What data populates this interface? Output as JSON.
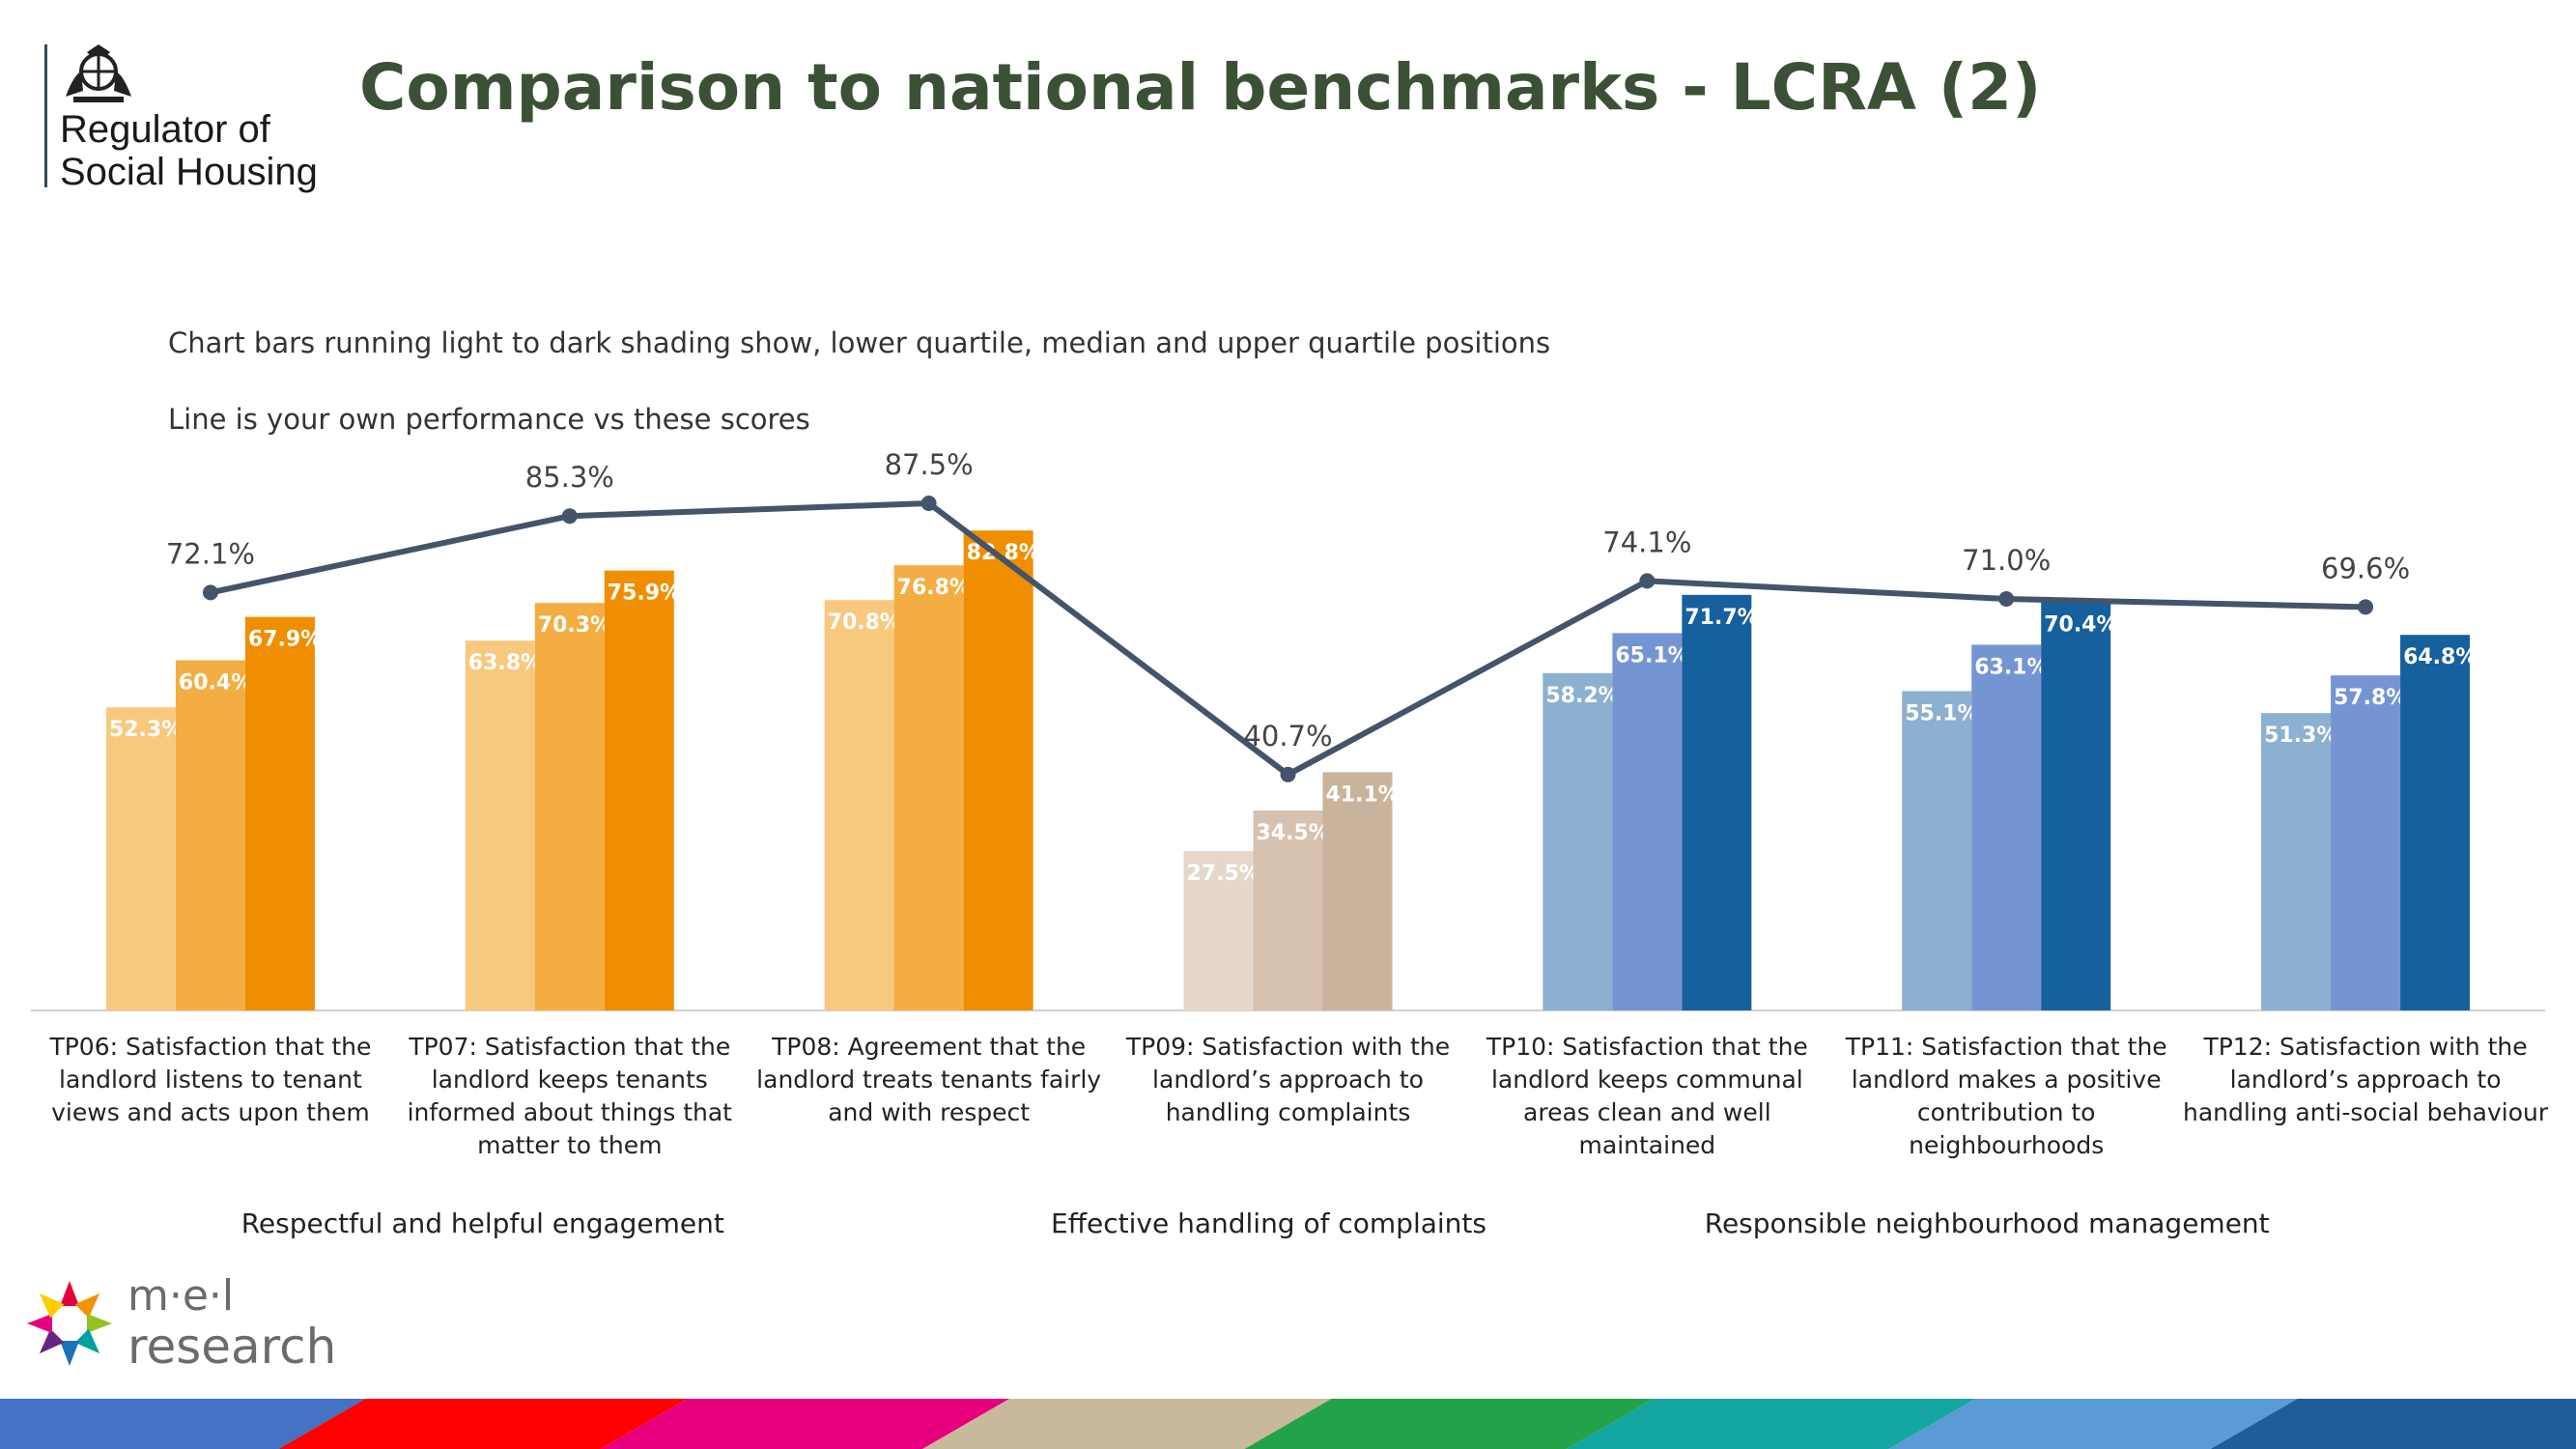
{
  "header": {
    "title": "Comparison to national benchmarks  - LCRA (2)",
    "org_line1": "Regulator of",
    "org_line2": "Social Housing"
  },
  "notes": {
    "line1": "Chart bars running light to dark shading show, lower quartile, median and upper quartile positions",
    "line2": "Line is your own performance vs these scores"
  },
  "chart_data": {
    "type": "bar",
    "title": "",
    "xlabel": "",
    "ylabel": "",
    "ylim": [
      0,
      100
    ],
    "grid": false,
    "legend": "none",
    "categories": [
      "TP06: Satisfaction that the landlord listens to tenant views and acts upon them",
      "TP07: Satisfaction that the landlord keeps tenants informed about things that matter to them",
      "TP08: Agreement that the landlord treats tenants fairly and with respect",
      "TP09: Satisfaction with the landlord’s approach to handling complaints",
      "TP10: Satisfaction that the landlord keeps communal areas clean and well maintained",
      "TP11: Satisfaction that the landlord makes a positive contribution to neighbourhoods",
      "TP12: Satisfaction with the landlord’s approach to handling anti-social behaviour"
    ],
    "category_lines": [
      [
        "TP06: Satisfaction that the",
        "landlord listens to tenant",
        "views and acts upon them"
      ],
      [
        "TP07: Satisfaction that the",
        "landlord keeps tenants",
        "informed about things that",
        "matter to them"
      ],
      [
        "TP08: Agreement that the",
        "landlord treats tenants fairly",
        "and with respect"
      ],
      [
        "TP09: Satisfaction with the",
        "landlord’s approach to",
        "handling complaints"
      ],
      [
        "TP10: Satisfaction that the",
        "landlord keeps communal",
        "areas clean and well",
        "maintained"
      ],
      [
        "TP11: Satisfaction that the",
        "landlord makes a positive",
        "contribution to",
        "neighbourhoods"
      ],
      [
        "TP12: Satisfaction with the",
        "landlord’s approach to",
        "handling anti-social behaviour"
      ]
    ],
    "series": [
      {
        "role": "lower quartile",
        "type": "bar",
        "values": [
          52.3,
          63.8,
          70.8,
          27.5,
          58.2,
          55.1,
          51.3
        ]
      },
      {
        "role": "median",
        "type": "bar",
        "values": [
          60.4,
          70.3,
          76.8,
          34.5,
          65.1,
          63.1,
          57.8
        ]
      },
      {
        "role": "upper quartile",
        "type": "bar",
        "values": [
          67.9,
          75.9,
          82.8,
          41.1,
          71.7,
          70.4,
          64.8
        ]
      },
      {
        "role": "own performance",
        "type": "line",
        "values": [
          72.1,
          85.3,
          87.5,
          40.7,
          74.1,
          71.0,
          69.6
        ]
      }
    ],
    "bar_labels": [
      [
        "52.3%",
        "60.4%",
        "67.9%"
      ],
      [
        "63.8%",
        "70.3%",
        "75.9%"
      ],
      [
        "70.8%",
        "76.8%",
        "82.8%"
      ],
      [
        "27.5%",
        "34.5%",
        "41.1%"
      ],
      [
        "58.2%",
        "65.1%",
        "71.7%"
      ],
      [
        "55.1%",
        "63.1%",
        "70.4%"
      ],
      [
        "51.3%",
        "57.8%",
        "64.8%"
      ]
    ],
    "line_labels": [
      "72.1%",
      "85.3%",
      "87.5%",
      "40.7%",
      "74.1%",
      "71.0%",
      "69.6%"
    ],
    "category_colors": [
      [
        "#f8c87f",
        "#f4ad42",
        "#ef8e00"
      ],
      [
        "#f8c87f",
        "#f4ad42",
        "#ef8e00"
      ],
      [
        "#f8c87f",
        "#f4ad42",
        "#ef8e00"
      ],
      [
        "#e5d8cb",
        "#d7c2af",
        "#c9b39c"
      ],
      [
        "#8cb0cf",
        "#7595d2",
        "#17609e"
      ],
      [
        "#8cb0cf",
        "#7595d2",
        "#17609e"
      ],
      [
        "#8cb0cf",
        "#7595d2",
        "#17609e"
      ]
    ],
    "line_color": "#44546a",
    "groups": [
      {
        "label": "Respectful and helpful engagement"
      },
      {
        "label": "Effective handling of complaints"
      },
      {
        "label": "Responsible neighbourhood management"
      }
    ]
  },
  "branding": {
    "partner_line1": "m·e·l",
    "partner_line2": "research"
  },
  "footer_colors": [
    "#4472c4",
    "#ff0000",
    "#e6007e",
    "#c9b99b",
    "#22a34a",
    "#14a6a0",
    "#5b9bd5",
    "#1f5c99"
  ]
}
